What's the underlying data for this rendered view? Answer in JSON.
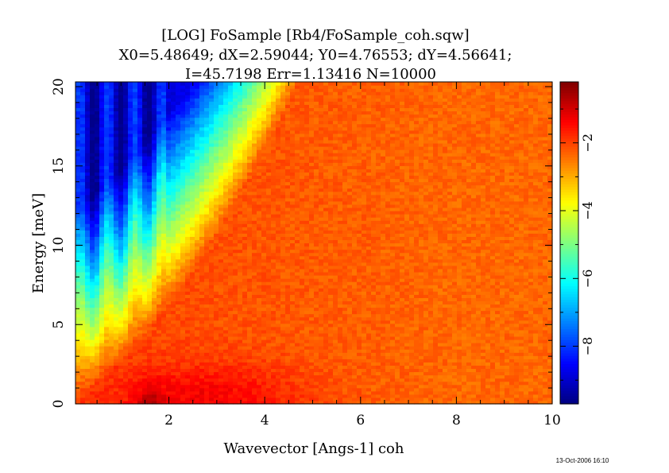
{
  "chart_data": {
    "type": "heatmap",
    "title": "[LOG] FoSample [Rb4/FoSample_coh.sqw]",
    "subtitle_lines": [
      "X0=5.48649; dX=2.59044; Y0=4.76553; dY=4.56641;",
      "I=45.7198 Err=1.13416 N=10000"
    ],
    "xlabel": "Wavevector [Angs-1] coh",
    "ylabel": "Energy [meV]",
    "xlim": [
      0.05,
      10.0
    ],
    "ylim": [
      0,
      20.3
    ],
    "x_ticks": [
      2,
      4,
      6,
      8,
      10
    ],
    "y_ticks": [
      0,
      5,
      10,
      15,
      20
    ],
    "grid": false,
    "colorbar": {
      "range": [
        -9.7,
        -0.2
      ],
      "ticks": [
        -2,
        -4,
        -6,
        -8
      ],
      "colormap": "jet"
    },
    "grid_size": {
      "nx": 100,
      "ny": 100
    },
    "footer": "13-Oct-2006 16:10"
  }
}
